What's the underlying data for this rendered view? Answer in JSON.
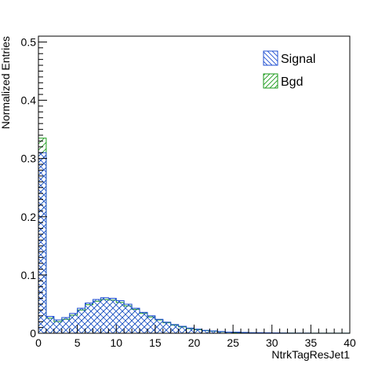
{
  "chart_data": {
    "type": "histogram",
    "title": "",
    "xlabel": "NtrkTagResJet1",
    "ylabel": "Normalized Entries",
    "xlim": [
      0,
      40
    ],
    "ylim": [
      0,
      0.51
    ],
    "bin_width": 1,
    "x_ticks": [
      0,
      5,
      10,
      15,
      20,
      25,
      30,
      35,
      40
    ],
    "y_ticks": [
      0,
      0.1,
      0.2,
      0.3,
      0.4,
      0.5
    ],
    "x_tick_labels": [
      "0",
      "5",
      "10",
      "15",
      "20",
      "25",
      "30",
      "35",
      "40"
    ],
    "y_tick_labels": [
      "0",
      "0.1",
      "0.2",
      "0.3",
      "0.4",
      "0.5"
    ],
    "legend_position": "top-right",
    "grid": false,
    "series": [
      {
        "name": "Signal",
        "color": "#1f4fd1",
        "fill": "crosshatch",
        "values": [
          0.31,
          0.029,
          0.023,
          0.027,
          0.034,
          0.043,
          0.052,
          0.058,
          0.061,
          0.06,
          0.056,
          0.05,
          0.043,
          0.036,
          0.03,
          0.024,
          0.019,
          0.015,
          0.012,
          0.009,
          0.007,
          0.005,
          0.004,
          0.003,
          0.002,
          0.002,
          0.0015,
          0.001,
          0.001,
          0.0008,
          0.0006,
          0.0005,
          0.0004,
          0.0003,
          0.0003,
          0.0002,
          0.0002,
          0.0001,
          0.0001,
          0.0001
        ]
      },
      {
        "name": "Bgd",
        "color": "#1a9a1a",
        "fill": "hatch",
        "values": [
          0.335,
          0.026,
          0.02,
          0.024,
          0.031,
          0.04,
          0.049,
          0.055,
          0.058,
          0.057,
          0.053,
          0.047,
          0.041,
          0.034,
          0.028,
          0.023,
          0.018,
          0.014,
          0.011,
          0.008,
          0.006,
          0.0045,
          0.0035,
          0.0025,
          0.0018,
          0.0014,
          0.001,
          0.0008,
          0.0006,
          0.0005,
          0.0004,
          0.0003,
          0.0003,
          0.0002,
          0.0002,
          0.0001,
          0.0001,
          0.0001,
          0.0001,
          0.0001
        ]
      }
    ]
  }
}
